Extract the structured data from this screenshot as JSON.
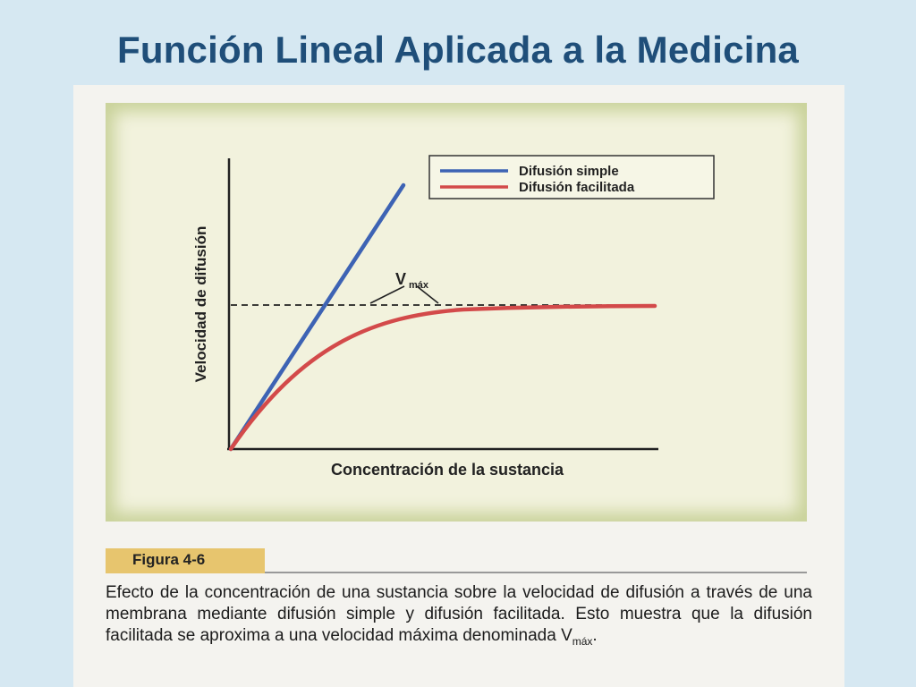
{
  "slide": {
    "title": "Función Lineal Aplicada a la Medicina"
  },
  "figure": {
    "label": "Figura 4-6",
    "caption_main": "Efecto de la concentración de una sustancia sobre la velocidad de difusión a través de una membrana mediante difusión simple y difusión facilitada. Esto muestra que la difusión facilitada se aproxima a una velocidad máxima denominada V",
    "caption_sub": "máx",
    "caption_end": "."
  },
  "chart_data": {
    "type": "line",
    "xlabel": "Concentración de la sustancia",
    "ylabel": "Velocidad de difusión",
    "legend_position": "top-right",
    "annotation": {
      "symbol": "V",
      "subscript": "máx"
    },
    "series": [
      {
        "name": "Difusión simple",
        "color": "#3d63b4",
        "shape": "straight line rising steeply from the origin"
      },
      {
        "name": "Difusión facilitada",
        "color": "#d34a4a",
        "shape": "curve rising from the origin and saturating at Vmáx"
      }
    ],
    "reference_line": {
      "label": "Vmáx",
      "style": "dashed"
    },
    "grid": false
  }
}
